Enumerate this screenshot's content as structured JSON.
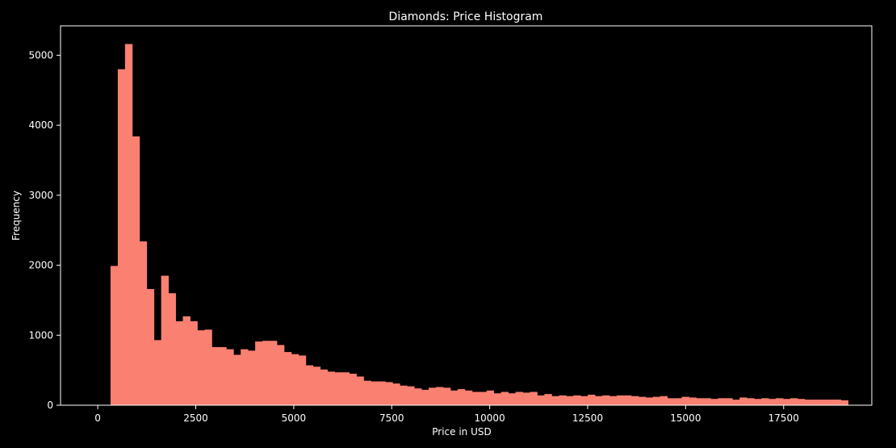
{
  "chart_data": {
    "type": "bar",
    "title": "Diamonds: Price Histogram",
    "xlabel": "Price in USD",
    "ylabel": "Frequency",
    "xlim": [
      -950,
      19750
    ],
    "ylim": [
      0,
      5420
    ],
    "xticks": [
      0,
      2500,
      5000,
      7500,
      10000,
      12500,
      15000,
      17500
    ],
    "xtick_labels": [
      "0",
      "2500",
      "5000",
      "7500",
      "10000",
      "12500",
      "15000",
      "17500"
    ],
    "yticks": [
      0,
      1000,
      2000,
      3000,
      4000,
      5000
    ],
    "ytick_labels": [
      "0",
      "1000",
      "2000",
      "3000",
      "4000",
      "5000"
    ],
    "grid": false,
    "bar_color": "#fa8072",
    "background_color": "#000000",
    "foreground_color": "#ffffff",
    "bins": {
      "start": 326,
      "width": 184.5,
      "values": [
        1990,
        4800,
        5160,
        3840,
        2340,
        1660,
        930,
        1850,
        1600,
        1200,
        1270,
        1200,
        1070,
        1080,
        830,
        830,
        800,
        720,
        800,
        780,
        910,
        920,
        920,
        860,
        760,
        730,
        710,
        570,
        550,
        510,
        480,
        470,
        470,
        450,
        410,
        350,
        340,
        340,
        330,
        310,
        280,
        270,
        240,
        220,
        250,
        260,
        250,
        210,
        230,
        210,
        190,
        190,
        210,
        170,
        190,
        170,
        190,
        180,
        190,
        140,
        160,
        130,
        140,
        130,
        140,
        130,
        150,
        130,
        140,
        130,
        140,
        140,
        130,
        120,
        110,
        120,
        130,
        100,
        100,
        120,
        110,
        100,
        100,
        90,
        100,
        100,
        80,
        110,
        100,
        90,
        100,
        90,
        100,
        90,
        100,
        90,
        80,
        80,
        80,
        80,
        80,
        70
      ]
    }
  }
}
